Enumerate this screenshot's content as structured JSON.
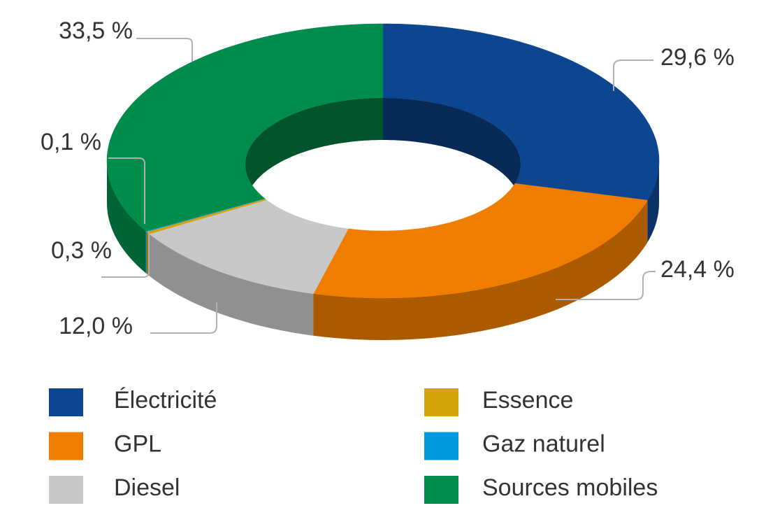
{
  "chart_data": {
    "type": "donut3d",
    "categories": [
      "Électricité",
      "GPL",
      "Diesel",
      "Essence",
      "Gaz naturel",
      "Sources mobiles"
    ],
    "values": [
      29.6,
      24.4,
      12.0,
      0.3,
      0.1,
      33.5
    ],
    "value_labels": [
      "29,6 %",
      "24,4 %",
      "12,0 %",
      "0,3 %",
      "0,1 %",
      "33,5 %"
    ],
    "colors": [
      "#0d4690",
      "#ef7d00",
      "#c8c8c8",
      "#d4a20a",
      "#0099dd",
      "#008c4a"
    ]
  }
}
